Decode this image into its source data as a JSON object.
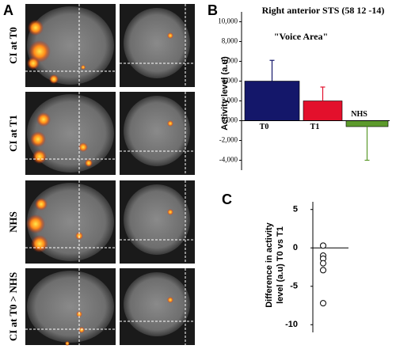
{
  "panel_labels": [
    "A",
    "B",
    "C"
  ],
  "image_rows": [
    "CI at T0",
    "CI at T1",
    "NHS",
    "CI at T0 > NHS"
  ],
  "chart_data": [
    {
      "type": "bar",
      "title": "Right anterior STS (58 12 -14)",
      "annotation": "\"Voice Area\"",
      "ylabel": "Activity level (a.u)",
      "categories": [
        "T0",
        "T1",
        "NHS"
      ],
      "values": [
        4000,
        2000,
        -600
      ],
      "errors": [
        2100,
        1400,
        3400
      ],
      "colors": [
        "#14176a",
        "#e3102c",
        "#5c9a2c"
      ],
      "ylim": [
        -5000,
        11000
      ],
      "yticks": [
        {
          "value": 10000,
          "label": "10,000"
        },
        {
          "value": 8000,
          "label": "8,000"
        },
        {
          "value": 6000,
          "label": "6,000"
        },
        {
          "value": 4000,
          "label": "4,000"
        },
        {
          "value": 2000,
          "label": "2,000"
        },
        {
          "value": 0,
          "label": "0,000"
        },
        {
          "value": -2000,
          "label": "-2,000"
        },
        {
          "value": -4000,
          "label": "-4,000"
        }
      ]
    },
    {
      "type": "strip",
      "ylabel": [
        "Difference in activity",
        "level (a.u) T0 vs T1"
      ],
      "values": [
        0.3,
        -1.0,
        -1.4,
        -2.0,
        -2.9,
        -7.2
      ],
      "ylim": [
        -11,
        6
      ],
      "yticks": [
        5,
        0,
        -5,
        -10
      ]
    }
  ]
}
